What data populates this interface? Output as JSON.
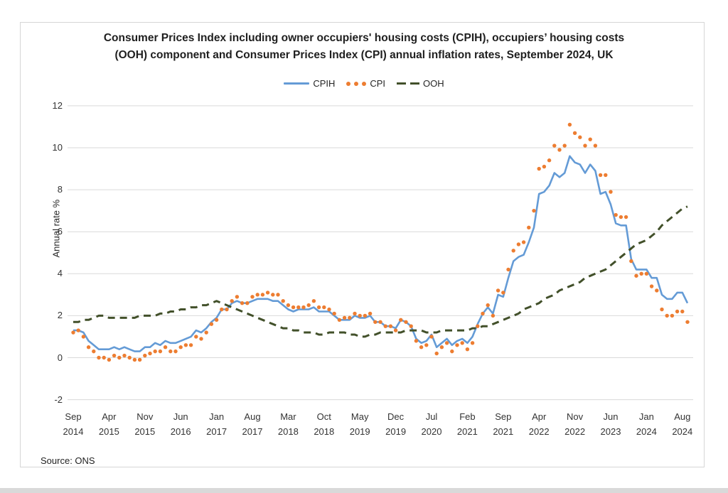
{
  "header": {
    "title_line1": "Consumer Prices Index including owner occupiers' housing costs (CPIH), occupiers’ housing costs",
    "title_line2": "(OOH) component and Consumer Prices Index (CPI) annual inflation rates, September 2024, UK"
  },
  "legend": [
    {
      "label": "CPIH",
      "color": "#649BD6",
      "style": "solid"
    },
    {
      "label": "CPI",
      "color": "#ED7D31",
      "style": "dots"
    },
    {
      "label": "OOH",
      "color": "#42502A",
      "style": "dashes"
    }
  ],
  "source": "Source: ONS",
  "colors": {
    "cpih": "#649BD6",
    "cpi": "#ED7D31",
    "ooh": "#42502A",
    "gridline": "#D9D9D9"
  },
  "chart_data": {
    "type": "line",
    "title": "Consumer Prices Index including owner occupiers' housing costs (CPIH), occupiers’ housing costs (OOH) component and Consumer Prices Index (CPI) annual inflation rates, September 2024, UK",
    "xlabel": "",
    "ylabel": "Annual rate %",
    "ylim": [
      -2,
      12
    ],
    "yticks": [
      -2,
      0,
      2,
      4,
      6,
      8,
      10,
      12
    ],
    "grid": true,
    "legend_position": "top",
    "x_start": "Sep 2014",
    "x_end": "Sep 2024",
    "x_frequency": "monthly",
    "xtick_every_n_months": 7,
    "xtick_labels": [
      [
        "Sep",
        "2014"
      ],
      [
        "Apr",
        "2015"
      ],
      [
        "Nov",
        "2015"
      ],
      [
        "Jun",
        "2016"
      ],
      [
        "Jan",
        "2017"
      ],
      [
        "Aug",
        "2017"
      ],
      [
        "Mar",
        "2018"
      ],
      [
        "Oct",
        "2018"
      ],
      [
        "May",
        "2019"
      ],
      [
        "Dec",
        "2019"
      ],
      [
        "Jul",
        "2020"
      ],
      [
        "Feb",
        "2021"
      ],
      [
        "Sep",
        "2021"
      ],
      [
        "Apr",
        "2022"
      ],
      [
        "Nov",
        "2022"
      ],
      [
        "Jun",
        "2023"
      ],
      [
        "Jan",
        "2024"
      ],
      [
        "Aug",
        "2024"
      ]
    ],
    "series": [
      {
        "name": "CPIH",
        "style": "solid",
        "color": "#649BD6",
        "values": [
          1.3,
          1.3,
          1.2,
          0.8,
          0.6,
          0.4,
          0.4,
          0.4,
          0.5,
          0.4,
          0.5,
          0.4,
          0.3,
          0.3,
          0.5,
          0.5,
          0.7,
          0.6,
          0.8,
          0.7,
          0.7,
          0.8,
          0.9,
          1.0,
          1.3,
          1.2,
          1.4,
          1.7,
          1.9,
          2.3,
          2.3,
          2.6,
          2.7,
          2.6,
          2.6,
          2.7,
          2.8,
          2.8,
          2.8,
          2.7,
          2.7,
          2.5,
          2.3,
          2.2,
          2.3,
          2.3,
          2.3,
          2.4,
          2.2,
          2.2,
          2.2,
          2.0,
          1.8,
          1.8,
          1.8,
          2.0,
          1.9,
          1.9,
          2.0,
          1.7,
          1.7,
          1.5,
          1.5,
          1.4,
          1.8,
          1.7,
          1.5,
          0.9,
          0.7,
          0.8,
          1.1,
          0.5,
          0.7,
          0.9,
          0.6,
          0.8,
          0.9,
          0.7,
          1.0,
          1.6,
          2.1,
          2.4,
          2.1,
          3.0,
          2.9,
          3.8,
          4.6,
          4.8,
          4.9,
          5.5,
          6.2,
          7.8,
          7.9,
          8.2,
          8.8,
          8.6,
          8.8,
          9.6,
          9.3,
          9.2,
          8.8,
          9.2,
          8.9,
          7.8,
          7.9,
          7.3,
          6.4,
          6.3,
          6.3,
          4.7,
          4.2,
          4.2,
          4.2,
          3.8,
          3.8,
          3.0,
          2.8,
          2.8,
          3.1,
          3.1,
          2.6
        ]
      },
      {
        "name": "CPI",
        "style": "dots",
        "color": "#ED7D31",
        "values": [
          1.2,
          1.3,
          1.0,
          0.5,
          0.3,
          0.0,
          0.0,
          -0.1,
          0.1,
          0.0,
          0.1,
          0.0,
          -0.1,
          -0.1,
          0.1,
          0.2,
          0.3,
          0.3,
          0.5,
          0.3,
          0.3,
          0.5,
          0.6,
          0.6,
          1.0,
          0.9,
          1.2,
          1.6,
          1.8,
          2.3,
          2.3,
          2.7,
          2.9,
          2.6,
          2.6,
          2.9,
          3.0,
          3.0,
          3.1,
          3.0,
          3.0,
          2.7,
          2.5,
          2.4,
          2.4,
          2.4,
          2.5,
          2.7,
          2.4,
          2.4,
          2.3,
          2.1,
          1.8,
          1.9,
          1.9,
          2.1,
          2.0,
          2.0,
          2.1,
          1.7,
          1.7,
          1.5,
          1.5,
          1.3,
          1.8,
          1.7,
          1.5,
          0.8,
          0.5,
          0.6,
          1.0,
          0.2,
          0.5,
          0.7,
          0.3,
          0.6,
          0.7,
          0.4,
          0.7,
          1.5,
          2.1,
          2.5,
          2.0,
          3.2,
          3.1,
          4.2,
          5.1,
          5.4,
          5.5,
          6.2,
          7.0,
          9.0,
          9.1,
          9.4,
          10.1,
          9.9,
          10.1,
          11.1,
          10.7,
          10.5,
          10.1,
          10.4,
          10.1,
          8.7,
          8.7,
          7.9,
          6.8,
          6.7,
          6.7,
          4.6,
          3.9,
          4.0,
          4.0,
          3.4,
          3.2,
          2.3,
          2.0,
          2.0,
          2.2,
          2.2,
          1.7
        ]
      },
      {
        "name": "OOH",
        "style": "dashed",
        "color": "#42502A",
        "values": [
          1.7,
          1.7,
          1.8,
          1.8,
          1.9,
          2.0,
          2.0,
          1.9,
          1.9,
          1.9,
          1.9,
          1.9,
          1.9,
          2.0,
          2.0,
          2.0,
          2.0,
          2.1,
          2.1,
          2.2,
          2.2,
          2.3,
          2.3,
          2.4,
          2.4,
          2.5,
          2.5,
          2.6,
          2.7,
          2.6,
          2.5,
          2.4,
          2.3,
          2.2,
          2.1,
          2.0,
          1.9,
          1.8,
          1.7,
          1.6,
          1.5,
          1.4,
          1.4,
          1.3,
          1.3,
          1.2,
          1.2,
          1.2,
          1.1,
          1.1,
          1.2,
          1.2,
          1.2,
          1.2,
          1.1,
          1.1,
          1.0,
          1.0,
          1.1,
          1.1,
          1.2,
          1.2,
          1.2,
          1.2,
          1.2,
          1.3,
          1.3,
          1.3,
          1.3,
          1.2,
          1.2,
          1.2,
          1.3,
          1.3,
          1.3,
          1.3,
          1.3,
          1.3,
          1.4,
          1.4,
          1.5,
          1.5,
          1.6,
          1.7,
          1.8,
          1.9,
          2.0,
          2.1,
          2.3,
          2.4,
          2.5,
          2.6,
          2.8,
          2.9,
          3.0,
          3.2,
          3.3,
          3.4,
          3.5,
          3.6,
          3.8,
          3.9,
          4.0,
          4.1,
          4.2,
          4.4,
          4.6,
          4.8,
          5.0,
          5.2,
          5.4,
          5.5,
          5.6,
          5.8,
          6.0,
          6.3,
          6.5,
          6.7,
          6.9,
          7.1,
          7.2
        ]
      }
    ]
  }
}
